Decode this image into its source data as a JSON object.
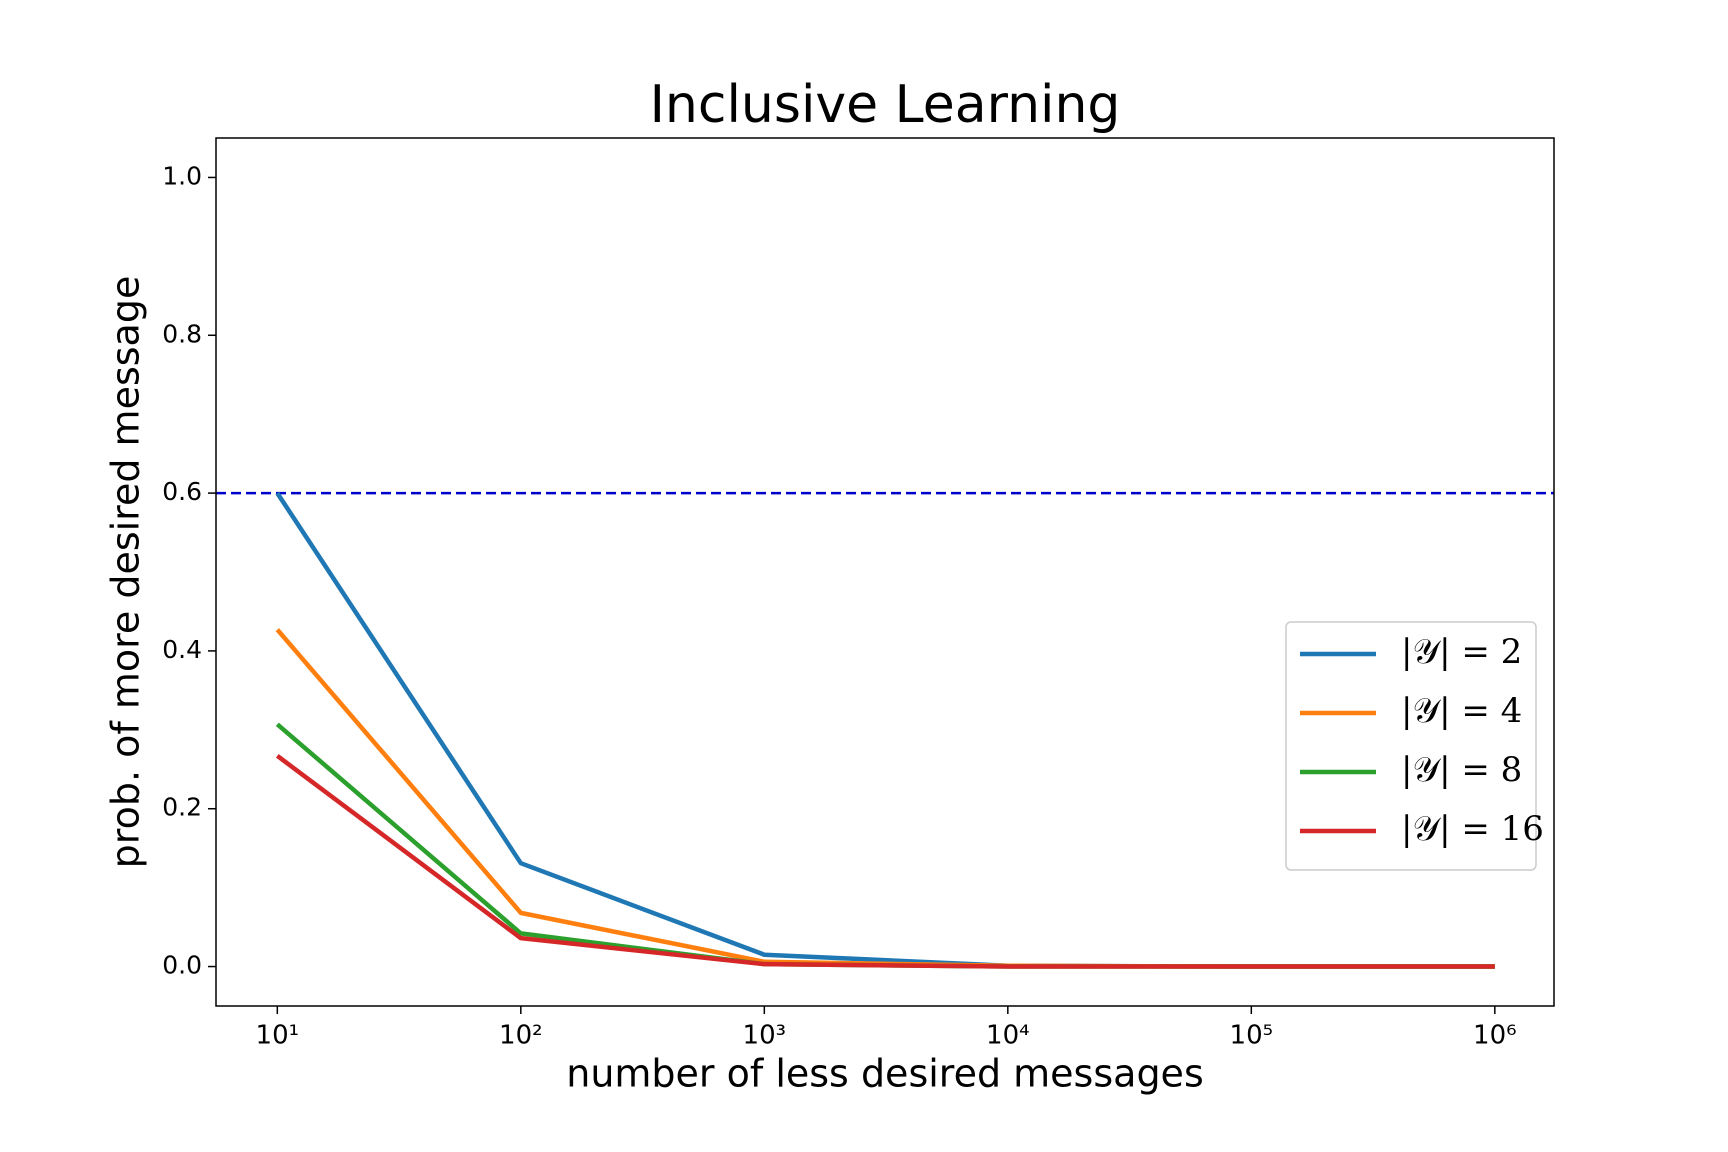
{
  "chart_data": {
    "type": "line",
    "title": "Inclusive Learning",
    "x_label": "number of less desired messages",
    "y_label": "prob. of more desired message",
    "x": [
      10,
      100,
      1000,
      10000,
      100000,
      1000000
    ],
    "series": [
      {
        "name": "|𝒴| = 2",
        "color": "#1f77b4",
        "values": [
          0.6,
          0.131,
          0.015,
          0.001,
          0,
          0
        ]
      },
      {
        "name": "|𝒴| = 4",
        "color": "#ff7f0e",
        "values": [
          0.427,
          0.068,
          0.006,
          0.001,
          0,
          0
        ]
      },
      {
        "name": "|𝒴| = 8",
        "color": "#2ca02c",
        "values": [
          0.307,
          0.042,
          0.003,
          0,
          0,
          0
        ]
      },
      {
        "name": "|𝒴| = 16",
        "color": "#d62728",
        "values": [
          0.267,
          0.036,
          0.003,
          0,
          0,
          0
        ]
      }
    ],
    "hline": {
      "value": 0.6,
      "color": "#0000cc",
      "dashed": true
    },
    "xscale": "log",
    "xlim": [
      5.6,
      1750000
    ],
    "ylim": [
      -0.05,
      1.05
    ],
    "xticks": [
      {
        "value": 10,
        "label": "10¹"
      },
      {
        "value": 100,
        "label": "10²"
      },
      {
        "value": 1000,
        "label": "10³"
      },
      {
        "value": 10000,
        "label": "10⁴"
      },
      {
        "value": 100000,
        "label": "10⁵"
      },
      {
        "value": 1000000,
        "label": "10⁶"
      }
    ],
    "yticks": [
      {
        "value": 0,
        "label": "0.0"
      },
      0.2,
      0.4,
      0.6,
      0.8,
      {
        "value": 1,
        "label": "1.0"
      }
    ],
    "grid": false,
    "legend": "right"
  }
}
